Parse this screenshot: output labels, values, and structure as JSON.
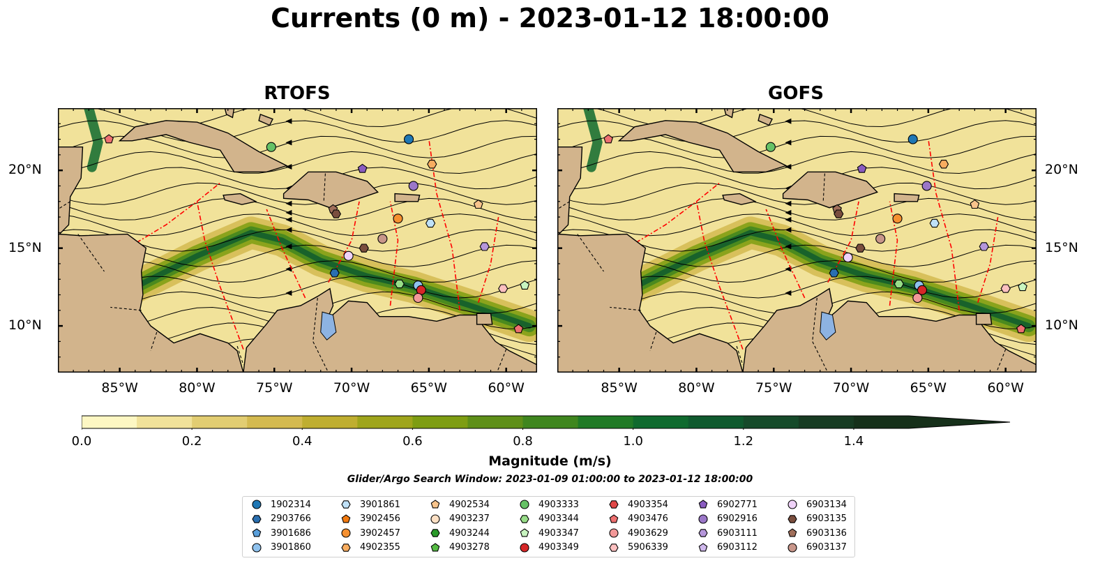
{
  "title": "Currents (0 m) - 2023-01-12 18:00:00",
  "panels": [
    {
      "title": "RTOFS"
    },
    {
      "title": "GOFS"
    }
  ],
  "map": {
    "lon_range": [
      -89,
      -58
    ],
    "lat_range": [
      7,
      24
    ],
    "lon_ticks": [
      "85°W",
      "80°W",
      "75°W",
      "70°W",
      "65°W",
      "60°W"
    ],
    "lat_ticks": [
      "20°N",
      "15°N",
      "10°N"
    ],
    "land_color": "#d2b48c",
    "lake_color": "#8db3e2",
    "eez_color": "#ff0000"
  },
  "colorbar": {
    "title": "Magnitude (m/s)",
    "min": 0.0,
    "max": 1.5,
    "extend": "max",
    "tick_labels": [
      "0.0",
      "0.2",
      "0.4",
      "0.6",
      "0.8",
      "1.0",
      "1.2",
      "1.4"
    ],
    "colors": [
      "#fdf7c3",
      "#f1e29a",
      "#e2cd72",
      "#d4ba50",
      "#bfae30",
      "#9fa51b",
      "#7e9d12",
      "#5e8f18",
      "#3f861e",
      "#207a26",
      "#0f6a2e",
      "#0f5a2e",
      "#164a2a",
      "#173b22",
      "#16301a"
    ]
  },
  "search_window": "Glider/Argo Search Window: 2023-01-09 01:00:00 to 2023-01-12 18:00:00",
  "legend": [
    {
      "id": "1902314",
      "marker": "circle",
      "color": "#1f77b4"
    },
    {
      "id": "2903766",
      "marker": "hexagon",
      "color": "#2a6fb0"
    },
    {
      "id": "3901686",
      "marker": "pentagon",
      "color": "#5aa0dc"
    },
    {
      "id": "3901860",
      "marker": "circle",
      "color": "#8fc2ee"
    },
    {
      "id": "3901861",
      "marker": "hexagon",
      "color": "#bfe1f8"
    },
    {
      "id": "3902456",
      "marker": "pentagon",
      "color": "#f27a10"
    },
    {
      "id": "3902457",
      "marker": "circle",
      "color": "#f59030"
    },
    {
      "id": "4902355",
      "marker": "hexagon",
      "color": "#f8ad60"
    },
    {
      "id": "4902534",
      "marker": "pentagon",
      "color": "#f8c48c"
    },
    {
      "id": "4903237",
      "marker": "circle",
      "color": "#fde0c4"
    },
    {
      "id": "4903244",
      "marker": "hexagon",
      "color": "#2a9a2a"
    },
    {
      "id": "4903278",
      "marker": "pentagon",
      "color": "#55bb44"
    },
    {
      "id": "4903333",
      "marker": "circle",
      "color": "#66c266"
    },
    {
      "id": "4903344",
      "marker": "hexagon",
      "color": "#98dd88"
    },
    {
      "id": "4903347",
      "marker": "pentagon",
      "color": "#c8f4c0"
    },
    {
      "id": "4903349",
      "marker": "circle",
      "color": "#d62728"
    },
    {
      "id": "4903354",
      "marker": "hexagon",
      "color": "#e04848"
    },
    {
      "id": "4903476",
      "marker": "pentagon",
      "color": "#ee7070"
    },
    {
      "id": "4903629",
      "marker": "circle",
      "color": "#f29898"
    },
    {
      "id": "5906339",
      "marker": "hexagon",
      "color": "#fcc0c0"
    },
    {
      "id": "6902771",
      "marker": "pentagon",
      "color": "#8a5cc0"
    },
    {
      "id": "6902916",
      "marker": "circle",
      "color": "#9b77c8"
    },
    {
      "id": "6903111",
      "marker": "hexagon",
      "color": "#b596da"
    },
    {
      "id": "6903112",
      "marker": "pentagon",
      "color": "#cfb8ec"
    },
    {
      "id": "6903134",
      "marker": "circle",
      "color": "#efd2f8"
    },
    {
      "id": "6903135",
      "marker": "hexagon",
      "color": "#7a4e3e"
    },
    {
      "id": "6903136",
      "marker": "pentagon",
      "color": "#a06e5a"
    },
    {
      "id": "6903137",
      "marker": "circle",
      "color": "#c8968a"
    }
  ],
  "floats": {
    "RTOFS": [
      {
        "id": "4903476",
        "lon": -85.7,
        "lat": 22.0
      },
      {
        "id": "4903333",
        "lon": -75.2,
        "lat": 21.5
      },
      {
        "id": "1902314",
        "lon": -66.3,
        "lat": 22.0
      },
      {
        "id": "4902355",
        "lon": -64.8,
        "lat": 20.4
      },
      {
        "id": "6902771",
        "lon": -69.3,
        "lat": 20.1
      },
      {
        "id": "6902916",
        "lon": -66.0,
        "lat": 19.0
      },
      {
        "id": "6903136",
        "lon": -71.2,
        "lat": 17.5
      },
      {
        "id": "6903135",
        "lon": -71.0,
        "lat": 17.2
      },
      {
        "id": "3902457",
        "lon": -67.0,
        "lat": 16.9
      },
      {
        "id": "3901861",
        "lon": -64.9,
        "lat": 16.6
      },
      {
        "id": "4902534",
        "lon": -61.8,
        "lat": 17.8
      },
      {
        "id": "6903137",
        "lon": -68.0,
        "lat": 15.6
      },
      {
        "id": "6903135",
        "lon": -69.2,
        "lat": 15.0
      },
      {
        "id": "6903111",
        "lon": -61.4,
        "lat": 15.1
      },
      {
        "id": "6903134",
        "lon": -70.2,
        "lat": 14.5
      },
      {
        "id": "2903766",
        "lon": -71.1,
        "lat": 13.4
      },
      {
        "id": "4903344",
        "lon": -66.9,
        "lat": 12.7
      },
      {
        "id": "3901860",
        "lon": -65.7,
        "lat": 12.6
      },
      {
        "id": "4903349",
        "lon": -65.5,
        "lat": 12.3
      },
      {
        "id": "4903629",
        "lon": -65.7,
        "lat": 11.8
      },
      {
        "id": "5906339",
        "lon": -60.2,
        "lat": 12.4
      },
      {
        "id": "4903347",
        "lon": -58.8,
        "lat": 12.6
      },
      {
        "id": "4903476",
        "lon": -59.2,
        "lat": 9.8
      }
    ],
    "GOFS": [
      {
        "id": "4903476",
        "lon": -85.7,
        "lat": 22.0
      },
      {
        "id": "4903333",
        "lon": -75.2,
        "lat": 21.5
      },
      {
        "id": "1902314",
        "lon": -66.0,
        "lat": 22.0
      },
      {
        "id": "4902355",
        "lon": -64.0,
        "lat": 20.4
      },
      {
        "id": "6902771",
        "lon": -69.3,
        "lat": 20.1
      },
      {
        "id": "6902916",
        "lon": -65.1,
        "lat": 19.0
      },
      {
        "id": "6903136",
        "lon": -70.9,
        "lat": 17.5
      },
      {
        "id": "6903135",
        "lon": -70.8,
        "lat": 17.2
      },
      {
        "id": "3902457",
        "lon": -67.0,
        "lat": 16.9
      },
      {
        "id": "3901861",
        "lon": -64.6,
        "lat": 16.6
      },
      {
        "id": "4902534",
        "lon": -62.0,
        "lat": 17.8
      },
      {
        "id": "6903137",
        "lon": -68.1,
        "lat": 15.6
      },
      {
        "id": "6903135",
        "lon": -69.4,
        "lat": 15.0
      },
      {
        "id": "6903111",
        "lon": -61.4,
        "lat": 15.1
      },
      {
        "id": "6903134",
        "lon": -70.2,
        "lat": 14.4
      },
      {
        "id": "2903766",
        "lon": -71.1,
        "lat": 13.4
      },
      {
        "id": "4903344",
        "lon": -66.9,
        "lat": 12.7
      },
      {
        "id": "3901860",
        "lon": -65.6,
        "lat": 12.6
      },
      {
        "id": "4903349",
        "lon": -65.4,
        "lat": 12.3
      },
      {
        "id": "4903629",
        "lon": -65.7,
        "lat": 11.8
      },
      {
        "id": "5906339",
        "lon": -60.0,
        "lat": 12.4
      },
      {
        "id": "4903347",
        "lon": -58.9,
        "lat": 12.5
      },
      {
        "id": "4903476",
        "lon": -59.0,
        "lat": 9.8
      }
    ]
  }
}
